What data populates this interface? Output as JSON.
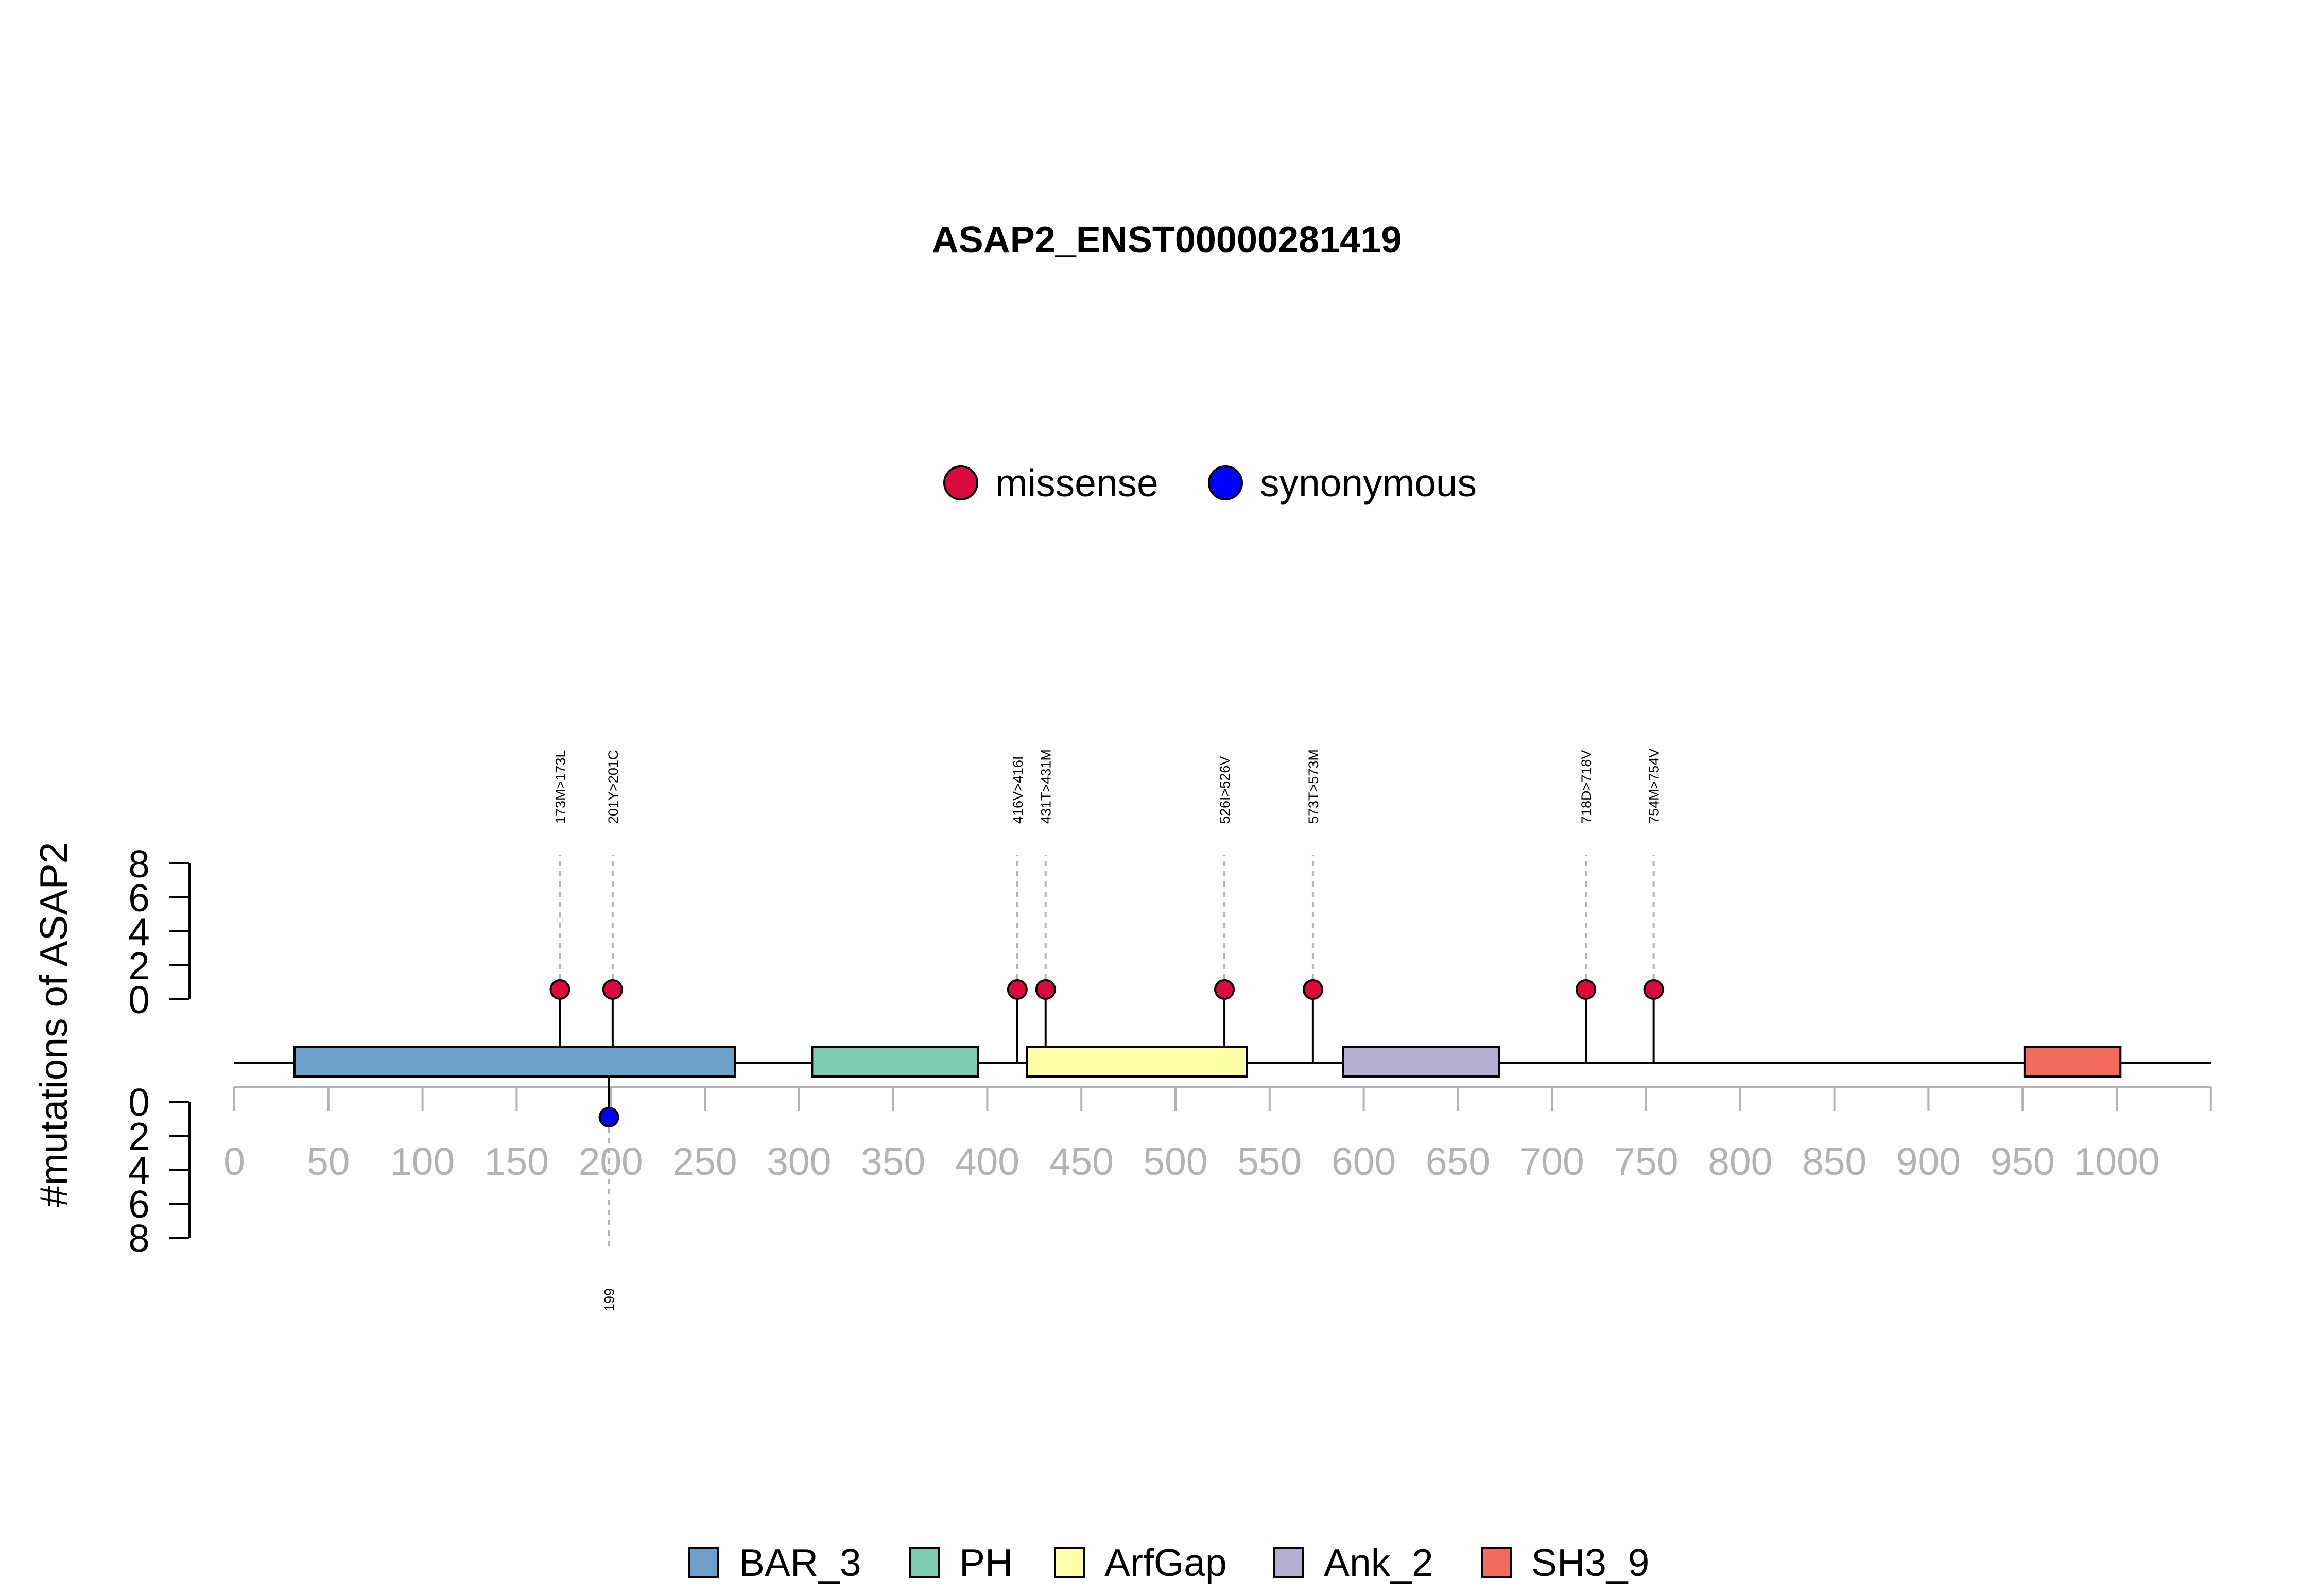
{
  "chart_data": {
    "type": "lollipop",
    "title": "ASAP2_ENST00000281419",
    "ylabel": "#mutations of ASAP2",
    "xlim": [
      0,
      1050
    ],
    "x_ticks": [
      0,
      50,
      100,
      150,
      200,
      250,
      300,
      350,
      400,
      450,
      500,
      550,
      600,
      650,
      700,
      750,
      800,
      850,
      900,
      950,
      1000
    ],
    "y_ticks_upper": [
      8,
      6,
      4,
      2,
      0
    ],
    "y_ticks_lower": [
      0,
      2,
      4,
      6,
      8
    ],
    "mutation_legend": [
      {
        "name": "missense",
        "color": "#dc0a3c"
      },
      {
        "name": "synonymous",
        "color": "#0000ff"
      }
    ],
    "domain_legend": [
      {
        "name": "BAR_3",
        "color": "#6fa0c8"
      },
      {
        "name": "PH",
        "color": "#7ecbb4"
      },
      {
        "name": "ArfGap",
        "color": "#ffffa8"
      },
      {
        "name": "Ank_2",
        "color": "#b3aed2"
      },
      {
        "name": "SH3_9",
        "color": "#f36b5d"
      }
    ],
    "domains": [
      {
        "name": "BAR_3",
        "start": 32,
        "end": 266
      },
      {
        "name": "PH",
        "start": 307,
        "end": 395
      },
      {
        "name": "ArfGap",
        "start": 421,
        "end": 538
      },
      {
        "name": "Ank_2",
        "start": 589,
        "end": 672
      },
      {
        "name": "SH3_9",
        "start": 951,
        "end": 1002
      }
    ],
    "mutations_upper": [
      {
        "label": "173M>173L",
        "position": 173,
        "count": 1,
        "type": "missense"
      },
      {
        "label": "201Y>201C",
        "position": 201,
        "count": 1,
        "type": "missense"
      },
      {
        "label": "416V>416I",
        "position": 416,
        "count": 1,
        "type": "missense"
      },
      {
        "label": "431T>431M",
        "position": 431,
        "count": 1,
        "type": "missense"
      },
      {
        "label": "526I>526V",
        "position": 526,
        "count": 1,
        "type": "missense"
      },
      {
        "label": "573T>573M",
        "position": 573,
        "count": 1,
        "type": "missense"
      },
      {
        "label": "718D>718V",
        "position": 718,
        "count": 1,
        "type": "missense"
      },
      {
        "label": "754M>754V",
        "position": 754,
        "count": 1,
        "type": "missense"
      }
    ],
    "mutations_lower": [
      {
        "label": "199",
        "position": 199,
        "count": 1,
        "type": "synonymous"
      }
    ]
  }
}
